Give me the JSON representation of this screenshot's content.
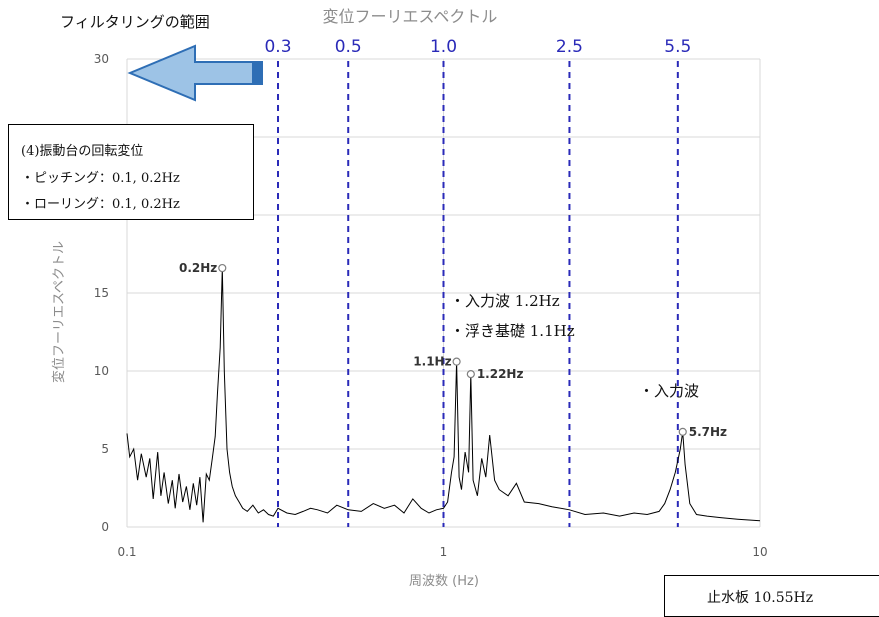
{
  "chart_data": {
    "type": "line",
    "title": "変位フーリエスペクトル",
    "xlabel": "周波数 (Hz)",
    "ylabel": "変位フーリエスペクトル",
    "x_scale": "log",
    "xlim": [
      0.1,
      10
    ],
    "ylim": [
      0,
      30
    ],
    "x_ticks": [
      "0.1",
      "1",
      "10"
    ],
    "y_ticks": [
      "0",
      "5",
      "10",
      "15",
      "20",
      "25",
      "30"
    ],
    "grid": "horizontal",
    "series": [
      {
        "color": "#000000",
        "x": [
          0.1,
          0.102,
          0.105,
          0.108,
          0.111,
          0.115,
          0.118,
          0.121,
          0.125,
          0.128,
          0.131,
          0.135,
          0.139,
          0.142,
          0.146,
          0.15,
          0.154,
          0.158,
          0.162,
          0.166,
          0.17,
          0.174,
          0.178,
          0.182,
          0.186,
          0.19,
          0.193,
          0.197,
          0.2,
          0.203,
          0.207,
          0.211,
          0.215,
          0.22,
          0.226,
          0.232,
          0.24,
          0.25,
          0.26,
          0.27,
          0.28,
          0.29,
          0.3,
          0.32,
          0.34,
          0.36,
          0.38,
          0.4,
          0.43,
          0.46,
          0.5,
          0.55,
          0.6,
          0.65,
          0.7,
          0.75,
          0.8,
          0.85,
          0.9,
          0.95,
          1.0,
          1.03,
          1.06,
          1.08,
          1.1,
          1.12,
          1.14,
          1.17,
          1.2,
          1.22,
          1.24,
          1.28,
          1.32,
          1.36,
          1.4,
          1.45,
          1.5,
          1.6,
          1.7,
          1.8,
          2.0,
          2.2,
          2.5,
          2.8,
          3.2,
          3.6,
          4.0,
          4.4,
          4.8,
          5.0,
          5.2,
          5.4,
          5.6,
          5.7,
          5.8,
          6.0,
          6.3,
          6.8,
          7.5,
          8.5,
          10.0
        ],
        "values": [
          6.0,
          4.5,
          5.0,
          3.0,
          4.7,
          3.2,
          4.4,
          1.8,
          4.8,
          2.0,
          3.5,
          1.5,
          3.0,
          1.2,
          3.4,
          1.6,
          2.6,
          1.1,
          2.8,
          1.4,
          3.2,
          0.3,
          3.4,
          3.0,
          4.4,
          5.8,
          8.5,
          11.5,
          16.6,
          10.0,
          5.0,
          3.5,
          2.6,
          2.0,
          1.6,
          1.2,
          1.0,
          1.4,
          0.9,
          1.1,
          0.8,
          0.7,
          1.2,
          0.9,
          0.8,
          1.0,
          1.2,
          1.1,
          0.9,
          1.4,
          1.1,
          1.0,
          1.5,
          1.2,
          1.4,
          0.9,
          1.8,
          1.2,
          0.9,
          1.1,
          1.2,
          1.6,
          3.5,
          4.5,
          10.6,
          3.2,
          2.4,
          4.8,
          3.5,
          9.8,
          3.0,
          2.0,
          4.4,
          3.2,
          5.9,
          3.0,
          2.4,
          2.0,
          2.8,
          1.6,
          1.5,
          1.3,
          1.1,
          0.8,
          0.9,
          0.7,
          0.9,
          0.8,
          1.0,
          1.5,
          2.4,
          3.5,
          5.0,
          6.1,
          4.0,
          1.5,
          0.8,
          0.7,
          0.6,
          0.5,
          0.4
        ]
      }
    ],
    "annotations": [
      {
        "label": "0.2Hz",
        "x": 0.2,
        "y": 16.6
      },
      {
        "label": "1.1Hz",
        "x": 1.1,
        "y": 10.6
      },
      {
        "label": "1.22Hz",
        "x": 1.22,
        "y": 9.8
      },
      {
        "label": "5.7Hz",
        "x": 5.7,
        "y": 6.1
      }
    ],
    "filter_lines": [
      {
        "label": "0.3",
        "x": 0.3
      },
      {
        "label": "0.5",
        "x": 0.5
      },
      {
        "label": "1.0",
        "x": 1.0
      },
      {
        "label": "2.5",
        "x": 2.5
      },
      {
        "label": "5.5",
        "x": 5.5
      }
    ],
    "filter_line_color": "#2a2ab8"
  },
  "overlays": {
    "filter_range_label": "フィルタリングの範囲",
    "rotation_box": {
      "title": "(4)振動台の回転変位",
      "line1": "・ピッチング：0.1, 0.2Hz",
      "line2": "・ローリング：0.1, 0.2Hz"
    },
    "input_wave_note": {
      "line1": "・入力波 1.2Hz",
      "line2": "・浮き基礎 1.1Hz"
    },
    "input_wave_label": "・入力波",
    "waterstop_box": "止水板 10.55Hz"
  },
  "colors": {
    "arrow_fill": "#9dc3e6",
    "arrow_stroke": "#2e6eb5",
    "grid": "#d9d9d9",
    "axis_text": "#595959"
  }
}
